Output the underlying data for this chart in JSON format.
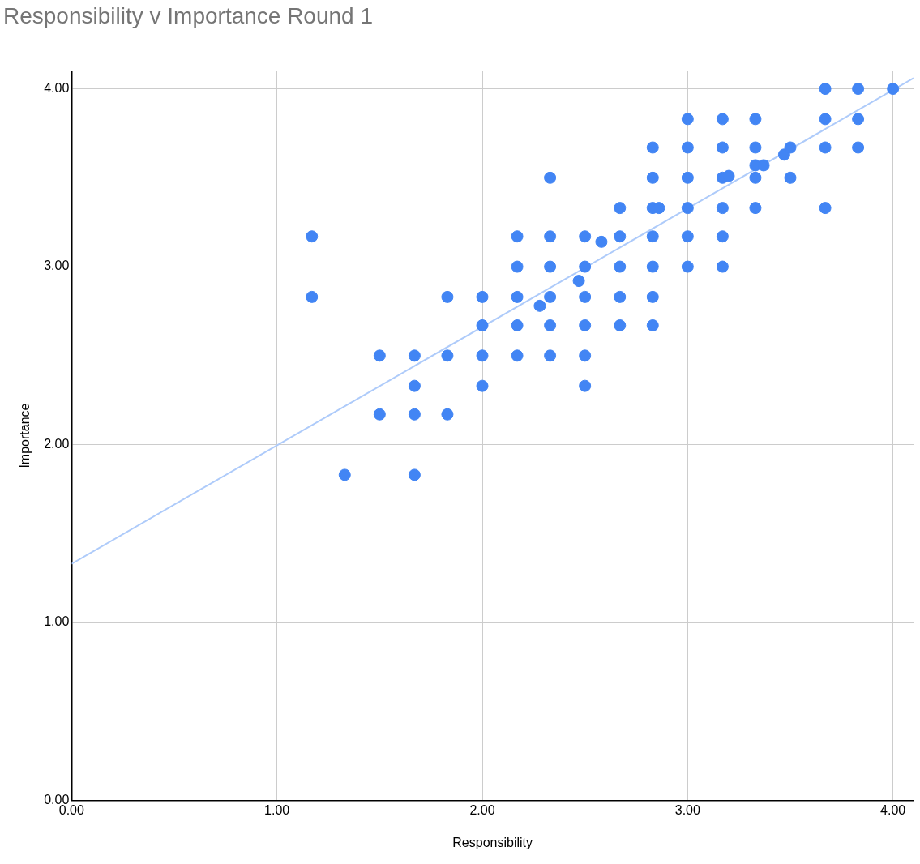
{
  "chart_data": {
    "type": "scatter",
    "title": "Responsibility v Importance Round 1",
    "xlabel": "Responsibility",
    "ylabel": "Importance",
    "xlim": [
      0,
      4.1
    ],
    "ylim": [
      0,
      4.1
    ],
    "xticks": [
      {
        "value": 0,
        "label": "0.00"
      },
      {
        "value": 1,
        "label": "1.00"
      },
      {
        "value": 2,
        "label": "2.00"
      },
      {
        "value": 3,
        "label": "3.00"
      },
      {
        "value": 4,
        "label": "4.00"
      }
    ],
    "yticks": [
      {
        "value": 0,
        "label": "0.00"
      },
      {
        "value": 1,
        "label": "1.00"
      },
      {
        "value": 2,
        "label": "2.00"
      },
      {
        "value": 3,
        "label": "3.00"
      },
      {
        "value": 4,
        "label": "4.00"
      }
    ],
    "grid": true,
    "marker": "circle",
    "series": [
      {
        "type": "scatter",
        "color": "#4285f4",
        "x": [
          1.17,
          1.17,
          1.33,
          1.5,
          1.5,
          1.67,
          1.67,
          1.67,
          1.67,
          1.83,
          1.83,
          1.83,
          2,
          2,
          2,
          2,
          2.17,
          2.17,
          2.17,
          2.17,
          2.17,
          2.33,
          2.33,
          2.33,
          2.33,
          2.33,
          2.33,
          2.28,
          2.47,
          2.5,
          2.5,
          2.5,
          2.5,
          2.5,
          2.5,
          2.58,
          2.67,
          2.67,
          2.67,
          2.67,
          2.67,
          2.83,
          2.83,
          2.83,
          2.83,
          2.83,
          2.83,
          2.83,
          2.86,
          3,
          3,
          3,
          3,
          3,
          3,
          3.17,
          3.17,
          3.17,
          3.17,
          3.17,
          3.17,
          3.2,
          3.33,
          3.33,
          3.33,
          3.33,
          3.33,
          3.37,
          3.47,
          3.5,
          3.5,
          3.67,
          3.67,
          3.67,
          3.67,
          3.83,
          3.83,
          3.83,
          4
        ],
        "values": [
          3.17,
          2.83,
          1.83,
          2.5,
          2.17,
          2.5,
          2.33,
          2.17,
          1.83,
          2.83,
          2.5,
          2.17,
          2.83,
          2.67,
          2.5,
          2.33,
          3.17,
          3,
          2.83,
          2.67,
          2.5,
          3.5,
          3.17,
          3,
          2.83,
          2.67,
          2.5,
          2.78,
          2.92,
          3.17,
          3,
          2.83,
          2.67,
          2.5,
          2.33,
          3.14,
          3.33,
          3.17,
          3,
          2.83,
          2.67,
          3.67,
          3.5,
          3.33,
          3.17,
          3,
          2.83,
          2.67,
          3.33,
          3.83,
          3.67,
          3.5,
          3.33,
          3.17,
          3,
          3.83,
          3.67,
          3.5,
          3.33,
          3.17,
          3,
          3.51,
          3.83,
          3.67,
          3.57,
          3.5,
          3.33,
          3.57,
          3.63,
          3.67,
          3.5,
          4,
          3.83,
          3.67,
          3.33,
          4,
          3.83,
          3.67,
          4
        ]
      },
      {
        "type": "line",
        "color": "#aecbfa",
        "marker": "none",
        "x": [
          0,
          4.1
        ],
        "values": [
          1.33,
          4.06
        ]
      }
    ]
  }
}
